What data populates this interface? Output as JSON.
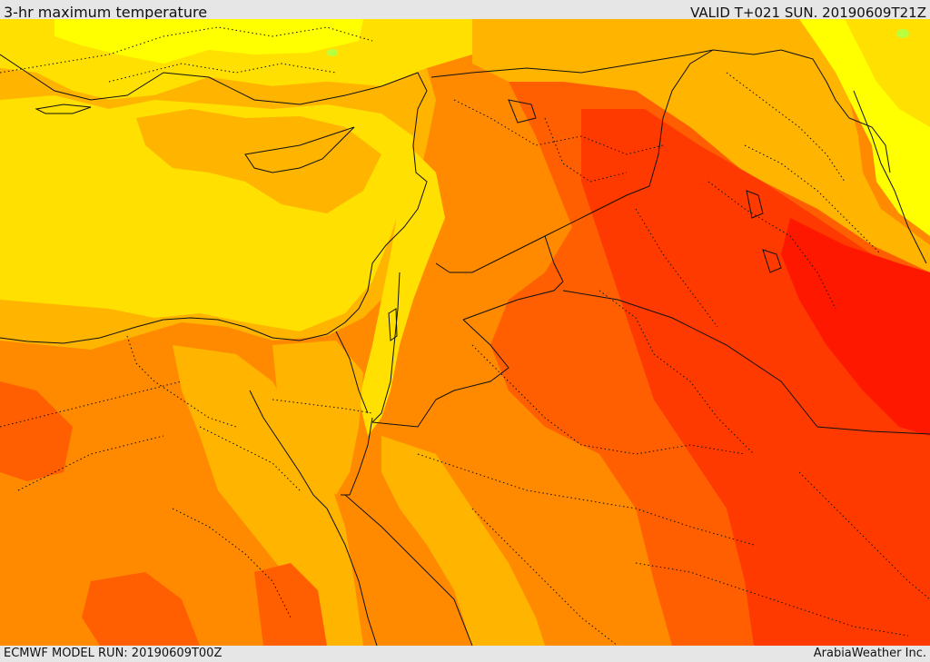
{
  "header": {
    "title": "3-hr maximum temperature",
    "valid": "VALID T+021 SUN. 20190609T21Z"
  },
  "footer": {
    "model_run": "ECMWF MODEL RUN: 20190609T00Z",
    "credit": "ArabiaWeather Inc."
  },
  "palette": {
    "light_yellow": "#ffff00",
    "yellow": "#ffe000",
    "gold": "#ffb400",
    "orange": "#ff8a00",
    "dark_orange": "#ff5f00",
    "red_orange": "#ff3a00",
    "red": "#ff1800",
    "green_patch": "#b8ff40"
  }
}
